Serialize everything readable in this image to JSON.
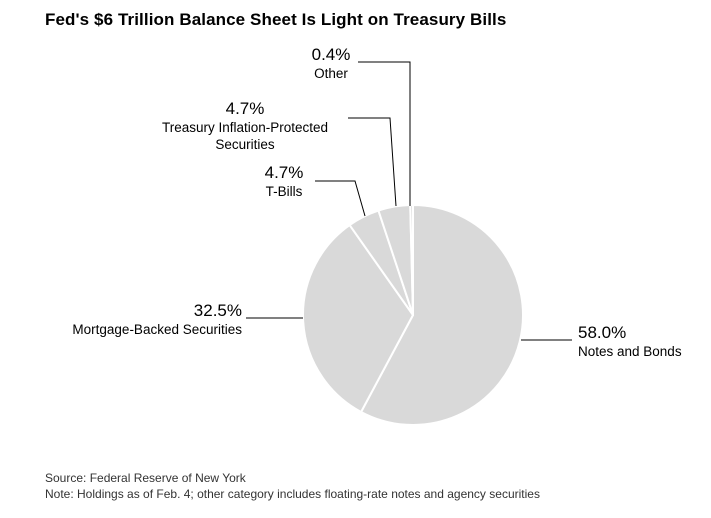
{
  "title": "Fed's $6 Trillion Balance Sheet Is Light on Treasury Bills",
  "source": "Source: Federal Reserve of New York",
  "note": "Note: Holdings as of Feb. 4; other category includes floating-rate notes and agency securities",
  "chart_data": {
    "type": "pie",
    "title": "Fed's $6 Trillion Balance Sheet Is Light on Treasury Bills",
    "slice_color": "#d9d9d9",
    "divider_color": "#ffffff",
    "start_angle_deg": 0,
    "direction": "clockwise",
    "legend_position": "none",
    "slices": [
      {
        "label": "Notes and Bonds",
        "value": 58.0,
        "pct_label": "58.0%"
      },
      {
        "label": "Mortgage-Backed Securities",
        "value": 32.5,
        "pct_label": "32.5%"
      },
      {
        "label": "T-Bills",
        "value": 4.7,
        "pct_label": "4.7%"
      },
      {
        "label": "Treasury Inflation-Protected Securities",
        "value": 4.7,
        "pct_label": "4.7%"
      },
      {
        "label": "Other",
        "value": 0.4,
        "pct_label": "0.4%"
      }
    ]
  }
}
